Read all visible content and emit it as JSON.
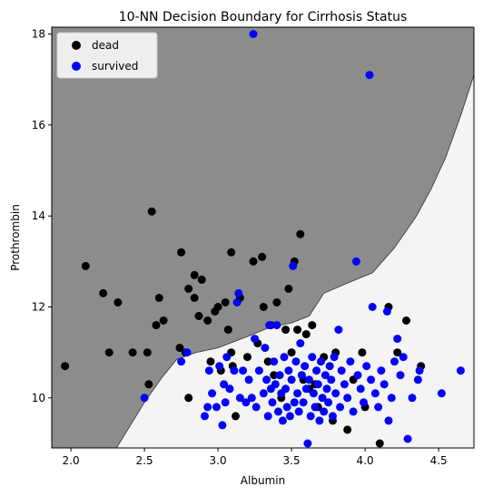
{
  "chart_data": {
    "type": "scatter",
    "title": "10-NN Decision Boundary for Cirrhosis Status",
    "xlabel": "Albumin",
    "ylabel": "Prothrombin",
    "xlim": [
      1.87,
      4.74
    ],
    "ylim": [
      8.9,
      18.15
    ],
    "xticks": [
      2.0,
      2.5,
      3.0,
      3.5,
      4.0,
      4.5
    ],
    "xtick_labels": [
      "2.0",
      "2.5",
      "3.0",
      "3.5",
      "4.0",
      "4.5"
    ],
    "yticks": [
      10,
      12,
      14,
      16,
      18
    ],
    "ytick_labels": [
      "10",
      "12",
      "14",
      "16",
      "18"
    ],
    "legend_position": "upper-left",
    "region_colors": {
      "dead": "#8c8c8c",
      "survived": "#f4f4f4"
    },
    "boundary": [
      [
        2.31,
        8.9
      ],
      [
        2.5,
        9.9
      ],
      [
        2.62,
        10.45
      ],
      [
        2.72,
        10.85
      ],
      [
        2.85,
        11.0
      ],
      [
        3.0,
        11.1
      ],
      [
        3.2,
        11.35
      ],
      [
        3.35,
        11.55
      ],
      [
        3.5,
        11.65
      ],
      [
        3.62,
        11.8
      ],
      [
        3.72,
        12.3
      ],
      [
        3.9,
        12.55
      ],
      [
        4.05,
        12.75
      ],
      [
        4.2,
        13.3
      ],
      [
        4.35,
        14.0
      ],
      [
        4.45,
        14.6
      ],
      [
        4.55,
        15.3
      ],
      [
        4.65,
        16.2
      ],
      [
        4.74,
        17.1
      ]
    ],
    "series": [
      {
        "name": "dead",
        "color": "#000000",
        "points": [
          [
            1.96,
            10.7
          ],
          [
            2.1,
            12.9
          ],
          [
            2.22,
            12.3
          ],
          [
            2.26,
            11.0
          ],
          [
            2.32,
            12.1
          ],
          [
            2.42,
            11.0
          ],
          [
            2.52,
            11.0
          ],
          [
            2.53,
            10.3
          ],
          [
            2.55,
            14.1
          ],
          [
            2.58,
            11.6
          ],
          [
            2.6,
            12.2
          ],
          [
            2.63,
            11.7
          ],
          [
            2.75,
            13.2
          ],
          [
            2.74,
            11.1
          ],
          [
            2.78,
            11.0
          ],
          [
            2.8,
            12.4
          ],
          [
            2.8,
            10.0
          ],
          [
            2.84,
            12.7
          ],
          [
            2.84,
            12.2
          ],
          [
            2.87,
            11.8
          ],
          [
            2.89,
            12.6
          ],
          [
            2.93,
            11.7
          ],
          [
            2.95,
            10.8
          ],
          [
            2.98,
            11.9
          ],
          [
            3.0,
            12.0
          ],
          [
            3.02,
            10.6
          ],
          [
            3.05,
            12.1
          ],
          [
            3.07,
            11.5
          ],
          [
            3.09,
            13.2
          ],
          [
            3.09,
            11.0
          ],
          [
            3.1,
            10.7
          ],
          [
            3.12,
            9.6
          ],
          [
            3.15,
            12.2
          ],
          [
            3.2,
            10.9
          ],
          [
            3.24,
            13.0
          ],
          [
            3.27,
            11.2
          ],
          [
            3.3,
            13.1
          ],
          [
            3.31,
            12.0
          ],
          [
            3.34,
            10.8
          ],
          [
            3.36,
            11.6
          ],
          [
            3.38,
            10.5
          ],
          [
            3.4,
            12.1
          ],
          [
            3.43,
            10.0
          ],
          [
            3.46,
            11.5
          ],
          [
            3.48,
            12.4
          ],
          [
            3.5,
            11.0
          ],
          [
            3.52,
            13.0
          ],
          [
            3.54,
            11.5
          ],
          [
            3.56,
            13.6
          ],
          [
            3.58,
            10.4
          ],
          [
            3.6,
            11.4
          ],
          [
            3.62,
            10.2
          ],
          [
            3.64,
            11.6
          ],
          [
            3.66,
            10.3
          ],
          [
            3.68,
            9.8
          ],
          [
            3.72,
            10.9
          ],
          [
            3.78,
            9.5
          ],
          [
            3.8,
            11.0
          ],
          [
            3.88,
            9.3
          ],
          [
            3.92,
            10.4
          ],
          [
            3.98,
            11.0
          ],
          [
            4.0,
            9.8
          ],
          [
            4.1,
            9.0
          ],
          [
            4.16,
            12.0
          ],
          [
            4.22,
            11.0
          ],
          [
            4.28,
            11.7
          ],
          [
            4.38,
            10.7
          ]
        ]
      },
      {
        "name": "survived",
        "color": "#0000ff",
        "points": [
          [
            2.5,
            10.0
          ],
          [
            2.75,
            10.8
          ],
          [
            2.79,
            11.0
          ],
          [
            2.91,
            9.6
          ],
          [
            2.93,
            9.8
          ],
          [
            2.94,
            10.6
          ],
          [
            2.96,
            10.1
          ],
          [
            2.99,
            9.8
          ],
          [
            3.01,
            10.7
          ],
          [
            3.03,
            9.4
          ],
          [
            3.04,
            10.3
          ],
          [
            3.05,
            9.9
          ],
          [
            3.06,
            10.9
          ],
          [
            3.08,
            10.2
          ],
          [
            3.11,
            10.6
          ],
          [
            3.13,
            12.1
          ],
          [
            3.14,
            12.3
          ],
          [
            3.15,
            10.0
          ],
          [
            3.17,
            10.6
          ],
          [
            3.19,
            9.9
          ],
          [
            3.21,
            10.4
          ],
          [
            3.23,
            10.0
          ],
          [
            3.24,
            18.0
          ],
          [
            3.25,
            11.3
          ],
          [
            3.26,
            9.8
          ],
          [
            3.28,
            10.6
          ],
          [
            3.31,
            10.1
          ],
          [
            3.32,
            11.1
          ],
          [
            3.33,
            10.4
          ],
          [
            3.34,
            9.6
          ],
          [
            3.35,
            11.6
          ],
          [
            3.36,
            10.2
          ],
          [
            3.37,
            9.9
          ],
          [
            3.38,
            10.8
          ],
          [
            3.39,
            10.3
          ],
          [
            3.4,
            11.6
          ],
          [
            3.41,
            9.7
          ],
          [
            3.42,
            10.5
          ],
          [
            3.43,
            10.1
          ],
          [
            3.44,
            9.5
          ],
          [
            3.45,
            10.9
          ],
          [
            3.46,
            10.2
          ],
          [
            3.47,
            9.8
          ],
          [
            3.48,
            10.6
          ],
          [
            3.49,
            9.6
          ],
          [
            3.5,
            10.4
          ],
          [
            3.51,
            12.9
          ],
          [
            3.52,
            9.9
          ],
          [
            3.53,
            10.8
          ],
          [
            3.54,
            10.1
          ],
          [
            3.55,
            9.7
          ],
          [
            3.56,
            11.2
          ],
          [
            3.57,
            10.5
          ],
          [
            3.58,
            9.9
          ],
          [
            3.59,
            10.7
          ],
          [
            3.6,
            10.2
          ],
          [
            3.61,
            9.0
          ],
          [
            3.62,
            10.4
          ],
          [
            3.63,
            9.6
          ],
          [
            3.64,
            10.9
          ],
          [
            3.65,
            10.1
          ],
          [
            3.66,
            9.8
          ],
          [
            3.67,
            10.6
          ],
          [
            3.68,
            10.3
          ],
          [
            3.69,
            9.5
          ],
          [
            3.7,
            10.8
          ],
          [
            3.71,
            10.0
          ],
          [
            3.72,
            9.7
          ],
          [
            3.73,
            10.5
          ],
          [
            3.74,
            10.2
          ],
          [
            3.75,
            9.9
          ],
          [
            3.76,
            10.7
          ],
          [
            3.77,
            10.4
          ],
          [
            3.78,
            9.6
          ],
          [
            3.79,
            10.9
          ],
          [
            3.8,
            10.1
          ],
          [
            3.82,
            11.5
          ],
          [
            3.83,
            9.8
          ],
          [
            3.84,
            10.6
          ],
          [
            3.86,
            10.3
          ],
          [
            3.88,
            10.0
          ],
          [
            3.9,
            10.8
          ],
          [
            3.92,
            9.7
          ],
          [
            3.94,
            13.0
          ],
          [
            3.95,
            10.5
          ],
          [
            3.97,
            10.2
          ],
          [
            3.99,
            9.9
          ],
          [
            4.01,
            10.7
          ],
          [
            4.03,
            17.1
          ],
          [
            4.04,
            10.4
          ],
          [
            4.05,
            12.0
          ],
          [
            4.07,
            10.1
          ],
          [
            4.09,
            9.8
          ],
          [
            4.11,
            10.6
          ],
          [
            4.13,
            10.3
          ],
          [
            4.15,
            11.9
          ],
          [
            4.16,
            9.5
          ],
          [
            4.18,
            10.0
          ],
          [
            4.2,
            10.8
          ],
          [
            4.22,
            11.3
          ],
          [
            4.24,
            10.5
          ],
          [
            4.26,
            10.9
          ],
          [
            4.29,
            9.1
          ],
          [
            4.32,
            10.0
          ],
          [
            4.36,
            10.4
          ],
          [
            4.37,
            10.6
          ],
          [
            4.52,
            10.1
          ],
          [
            4.65,
            10.6
          ]
        ]
      }
    ]
  }
}
